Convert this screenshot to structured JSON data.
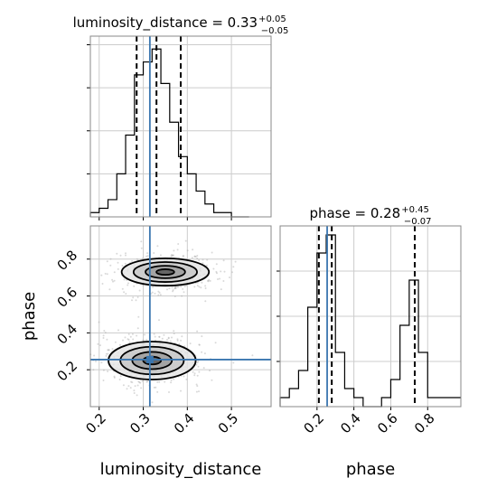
{
  "chart_data": {
    "type": "corner",
    "parameters": [
      "luminosity_distance",
      "phase"
    ],
    "truth": {
      "luminosity_distance": 0.315,
      "phase": 0.255
    },
    "panels": [
      {
        "id": "luminosity_distance-marginal",
        "type": "histogram",
        "title": "luminosity_distance = 0.33",
        "title_base": "luminosity_distance = 0.33",
        "title_plus": "+0.05",
        "title_minus": "−0.05",
        "bin_edges": [
          0.18,
          0.2,
          0.22,
          0.24,
          0.26,
          0.28,
          0.3,
          0.32,
          0.34,
          0.36,
          0.38,
          0.4,
          0.42,
          0.44,
          0.46,
          0.48,
          0.5,
          0.52,
          0.54
        ],
        "counts": [
          1,
          2,
          4,
          10,
          19,
          33,
          36,
          39,
          31,
          22,
          14,
          10,
          6,
          3,
          1,
          1,
          0,
          0
        ],
        "quantiles": [
          0.285,
          0.33,
          0.385
        ],
        "xlim": [
          0.18,
          0.59
        ],
        "grid": true
      },
      {
        "id": "phase-marginal",
        "type": "histogram",
        "title": "phase = 0.28",
        "title_base": "phase = 0.28",
        "title_plus": "+0.45",
        "title_minus": "−0.07",
        "bin_edges": [
          0.0,
          0.05,
          0.1,
          0.15,
          0.2,
          0.25,
          0.3,
          0.35,
          0.4,
          0.45,
          0.5,
          0.55,
          0.6,
          0.65,
          0.7,
          0.75,
          0.8,
          0.85,
          0.9,
          0.95,
          1.0
        ],
        "counts": [
          1,
          2,
          4,
          11,
          17,
          19,
          6,
          2,
          1,
          0,
          0,
          1,
          3,
          9,
          14,
          6,
          1,
          1,
          1,
          1
        ],
        "quantiles": [
          0.21,
          0.28,
          0.73
        ],
        "xlim": [
          0.0,
          0.98
        ],
        "xticks": [
          0.2,
          0.4,
          0.6,
          0.8
        ],
        "grid": true
      },
      {
        "id": "joint",
        "type": "2d-density",
        "xlim": [
          0.18,
          0.59
        ],
        "ylim": [
          0.0,
          0.98
        ],
        "xticks": [
          0.2,
          0.3,
          0.4,
          0.5
        ],
        "yticks": [
          0.2,
          0.4,
          0.6,
          0.8
        ],
        "modes": [
          {
            "x": 0.32,
            "y": 0.25,
            "sx": 0.045,
            "sy": 0.055,
            "weight": 0.6
          },
          {
            "x": 0.35,
            "y": 0.73,
            "sx": 0.045,
            "sy": 0.045,
            "weight": 0.4
          }
        ],
        "grid": true
      }
    ],
    "xlabels": [
      "luminosity_distance",
      "phase"
    ],
    "ylabels": [
      "",
      "phase"
    ],
    "tick_labels": {
      "luminosity_distance": [
        "0.2",
        "0.3",
        "0.4",
        "0.5"
      ],
      "phase_x": [
        "0.2",
        "0.4",
        "0.6",
        "0.8"
      ],
      "phase_y": [
        "0.2",
        "0.4",
        "0.6",
        "0.8"
      ]
    },
    "colors": {
      "truth": "#3a76af",
      "hist": "#000000",
      "grid": "#cccccc",
      "scatter": "#aaaaaa"
    }
  }
}
